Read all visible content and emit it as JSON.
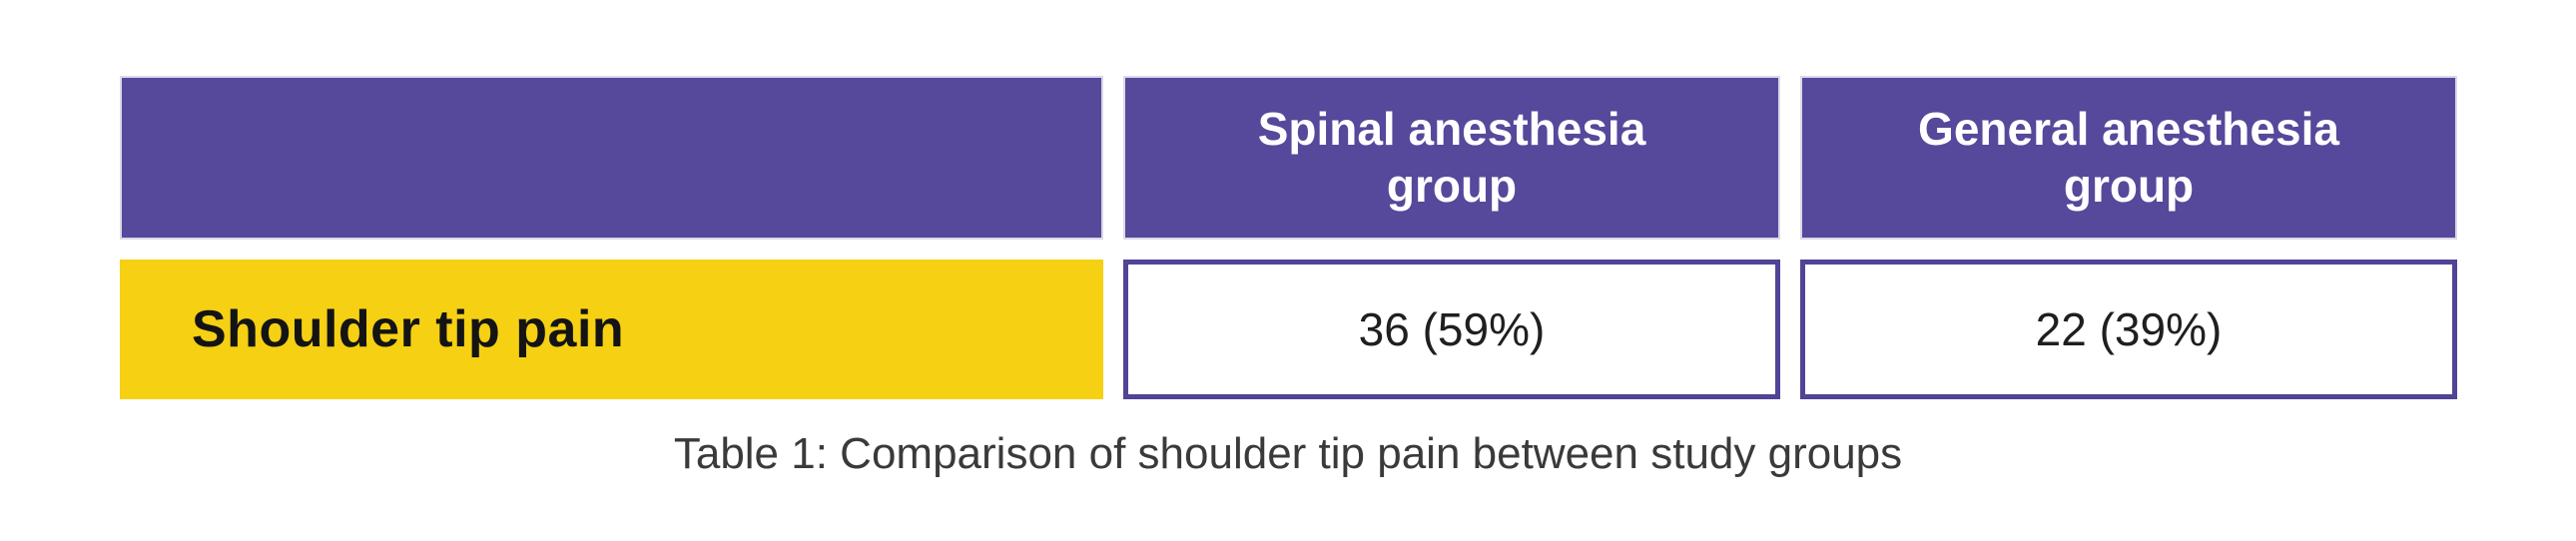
{
  "theme": {
    "background": "#ffffff",
    "purple": "#56489b",
    "header_outline": "#dcd8ea",
    "header_text": "#ffffff",
    "yellow": "#f5d013",
    "label_text": "#141414",
    "cell_border": "#4f4496",
    "value_text": "#1f1f1f",
    "caption_text": "#3a3a3a"
  },
  "table": {
    "columns": [
      "",
      "Spinal anesthesia group",
      "General anesthesia group"
    ],
    "rows": [
      {
        "label": "Shoulder tip pain",
        "values": [
          "36 (59%)",
          "22 (39%)"
        ]
      }
    ],
    "caption": "Table 1: Comparison of shoulder tip pain between study groups"
  },
  "chart_data": {
    "type": "table",
    "title": "Table 1: Comparison of shoulder tip pain between study groups",
    "columns": [
      "",
      "Spinal anesthesia group",
      "General anesthesia group"
    ],
    "rows": [
      [
        "Shoulder tip pain",
        "36 (59%)",
        "22 (39%)"
      ]
    ],
    "series": [
      {
        "name": "Spinal anesthesia group",
        "measure": "Shoulder tip pain",
        "count": 36,
        "percent": 59
      },
      {
        "name": "General anesthesia group",
        "measure": "Shoulder tip pain",
        "count": 22,
        "percent": 39
      }
    ]
  }
}
